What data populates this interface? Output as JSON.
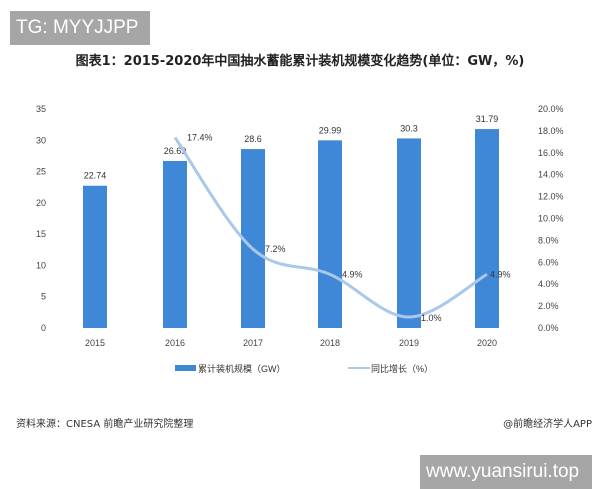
{
  "watermarks": {
    "top_left": "TG: MYYJJPP",
    "bottom_right": "www.yuansirui.top"
  },
  "footer": {
    "source": "资料来源：CNESA 前瞻产业研究院整理",
    "credit": "@前瞻经济学人APP"
  },
  "chart_data": {
    "type": "bar",
    "title": "图表1：2015-2020年中国抽水蓄能累计装机规模变化趋势(单位：GW，%)",
    "categories": [
      "2015",
      "2016",
      "2017",
      "2018",
      "2019",
      "2020"
    ],
    "series": [
      {
        "name": "累计装机规模（GW）",
        "type": "bar",
        "axis": "left",
        "values": [
          22.74,
          26.69,
          28.6,
          29.99,
          30.3,
          31.79
        ],
        "labels": [
          "22.74",
          "26.69",
          "28.6",
          "29.99",
          "30.3",
          "31.79"
        ],
        "color": "#3f88d8"
      },
      {
        "name": "同比增长（%）",
        "type": "line",
        "axis": "right",
        "values": [
          null,
          17.4,
          7.2,
          4.9,
          1.0,
          4.9
        ],
        "labels": [
          "",
          "17.4%",
          "7.2%",
          "4.9%",
          "1.0%",
          "4.9%"
        ],
        "color": "#a9c8ea"
      }
    ],
    "left_axis": {
      "ylim": [
        0,
        35
      ],
      "ticks": [
        "0",
        "5",
        "10",
        "15",
        "20",
        "25",
        "30",
        "35"
      ]
    },
    "right_axis": {
      "ylim": [
        0,
        20
      ],
      "ticks": [
        "0.0%",
        "2.0%",
        "4.0%",
        "6.0%",
        "8.0%",
        "10.0%",
        "12.0%",
        "14.0%",
        "16.0%",
        "18.0%",
        "20.0%"
      ]
    },
    "legend": "bottom"
  }
}
